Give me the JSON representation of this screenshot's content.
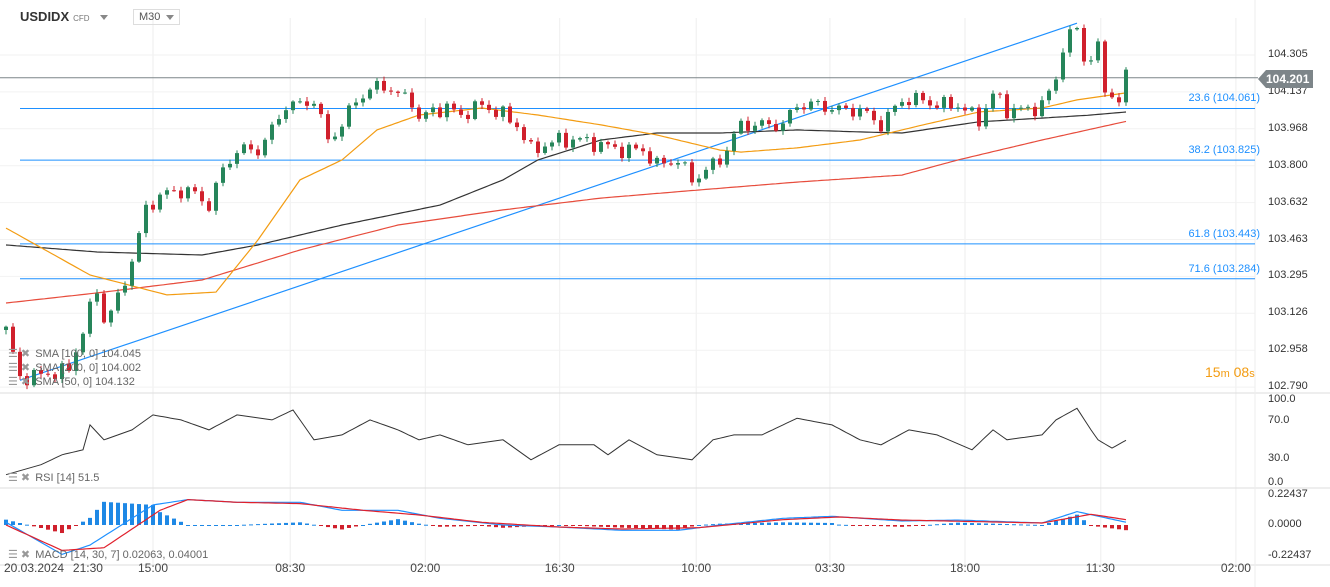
{
  "header": {
    "symbol": "USDIDX",
    "type": "CFD",
    "timeframe": "M30"
  },
  "price_label": "104.201",
  "timer": {
    "min": "15",
    "min_unit": "m",
    "sec": "08",
    "sec_unit": "s"
  },
  "price_axis": [
    "104.305",
    "104.137",
    "103.968",
    "103.800",
    "103.632",
    "103.463",
    "103.295",
    "103.126",
    "102.958",
    "102.790"
  ],
  "rsi_axis": [
    "100.0",
    "70.0",
    "30.0",
    "0.0"
  ],
  "macd_axis": [
    "0.22437",
    "0.0000",
    "-0.22437"
  ],
  "fib": [
    {
      "label": "23.6 (104.061)",
      "price": 104.061
    },
    {
      "label": "38.2 (103.825)",
      "price": 103.825
    },
    {
      "label": "61.8 (103.443)",
      "price": 103.443
    },
    {
      "label": "71.6 (103.284)",
      "price": 103.284
    }
  ],
  "legend": {
    "sma100": "SMA [100, 0] 104.045",
    "sma200": "SMA [200, 0] 104.002",
    "sma50": "SMA [50, 0] 104.132",
    "rsi": "RSI [14] 51.5",
    "macd": "MACD [14, 30, 7] 0.02063,  0.04001"
  },
  "time_axis": [
    {
      "t": "20.03.2024",
      "bar": 6
    },
    {
      "t": "21:30",
      "bar": 11.7
    },
    {
      "t": "15:00",
      "bar": 21
    },
    {
      "t": "08:30",
      "bar": 40.6
    },
    {
      "t": "02:00",
      "bar": 59.9
    },
    {
      "t": "16:30",
      "bar": 79.1
    },
    {
      "t": "10:00",
      "bar": 98.6
    },
    {
      "t": "03:30",
      "bar": 117.7
    },
    {
      "t": "18:00",
      "bar": 137
    },
    {
      "t": "11:30",
      "bar": 156.4
    },
    {
      "t": "02:00",
      "bar": 175.7
    }
  ],
  "colors": {
    "up": "#26855a",
    "down": "#d0202c",
    "sma50": "#f39c12",
    "sma100": "#333333",
    "sma200": "#e74c3c",
    "fib": "#1e90ff",
    "macd": "#1e90ff",
    "signal": "#e0202c"
  },
  "chart_data": {
    "type": "candlestick",
    "bars": 161,
    "ylim": [
      102.79,
      104.305
    ],
    "price_anchors": [
      [
        0,
        103.05
      ],
      [
        2,
        102.831
      ],
      [
        5,
        102.845
      ],
      [
        9,
        102.867
      ],
      [
        11,
        103.05
      ],
      [
        13,
        103.232
      ],
      [
        14,
        103.096
      ],
      [
        16,
        103.187
      ],
      [
        18,
        103.369
      ],
      [
        20,
        103.598
      ],
      [
        22,
        103.666
      ],
      [
        26,
        103.689
      ],
      [
        29,
        103.62
      ],
      [
        31,
        103.78
      ],
      [
        33,
        103.871
      ],
      [
        36,
        103.871
      ],
      [
        38,
        103.963
      ],
      [
        40,
        104.077
      ],
      [
        42,
        104.077
      ],
      [
        44,
        104.1
      ],
      [
        46,
        103.917
      ],
      [
        48,
        103.986
      ],
      [
        50,
        104.1
      ],
      [
        52,
        104.145
      ],
      [
        54,
        104.168
      ],
      [
        56,
        104.122
      ],
      [
        58,
        104.1
      ],
      [
        59,
        104.008
      ],
      [
        61,
        104.054
      ],
      [
        63,
        104.063
      ],
      [
        65,
        104.031
      ],
      [
        68,
        104.077
      ],
      [
        71,
        104.031
      ],
      [
        73,
        103.986
      ],
      [
        75,
        103.871
      ],
      [
        77,
        103.894
      ],
      [
        79,
        103.917
      ],
      [
        82,
        103.917
      ],
      [
        85,
        103.894
      ],
      [
        88,
        103.871
      ],
      [
        91,
        103.871
      ],
      [
        93,
        103.803
      ],
      [
        96,
        103.826
      ],
      [
        98,
        103.735
      ],
      [
        99,
        103.757
      ],
      [
        102,
        103.826
      ],
      [
        105,
        103.986
      ],
      [
        108,
        103.986
      ],
      [
        111,
        103.986
      ],
      [
        113,
        104.077
      ],
      [
        116,
        104.077
      ],
      [
        119,
        104.054
      ],
      [
        122,
        104.054
      ],
      [
        125,
        103.986
      ],
      [
        128,
        104.1
      ],
      [
        131,
        104.1
      ],
      [
        133,
        104.077
      ],
      [
        136,
        104.077
      ],
      [
        139,
        104.008
      ],
      [
        141,
        104.122
      ],
      [
        142,
        104.1
      ],
      [
        143,
        104.054
      ],
      [
        146,
        104.054
      ],
      [
        148,
        104.077
      ],
      [
        150,
        104.191
      ],
      [
        151,
        104.351
      ],
      [
        153,
        104.428
      ],
      [
        154,
        104.282
      ],
      [
        156,
        104.328
      ],
      [
        157,
        104.145
      ],
      [
        159,
        104.1
      ],
      [
        160,
        104.2
      ]
    ],
    "sma50": [
      [
        0,
        103.515
      ],
      [
        12,
        103.301
      ],
      [
        23,
        103.21
      ],
      [
        30,
        103.223
      ],
      [
        36,
        103.461
      ],
      [
        42,
        103.735
      ],
      [
        48,
        103.826
      ],
      [
        53,
        103.963
      ],
      [
        59,
        104.031
      ],
      [
        68,
        104.063
      ],
      [
        76,
        104.031
      ],
      [
        85,
        103.986
      ],
      [
        93,
        103.94
      ],
      [
        102,
        103.871
      ],
      [
        105,
        103.862
      ],
      [
        113,
        103.881
      ],
      [
        122,
        103.917
      ],
      [
        131,
        103.986
      ],
      [
        139,
        104.045
      ],
      [
        148,
        104.063
      ],
      [
        153,
        104.1
      ],
      [
        160,
        104.132
      ]
    ],
    "sma100": [
      [
        0,
        103.438
      ],
      [
        13,
        103.406
      ],
      [
        28,
        103.392
      ],
      [
        36,
        103.438
      ],
      [
        48,
        103.529
      ],
      [
        62,
        103.62
      ],
      [
        71,
        103.735
      ],
      [
        76,
        103.826
      ],
      [
        85,
        103.917
      ],
      [
        93,
        103.949
      ],
      [
        102,
        103.949
      ],
      [
        113,
        103.963
      ],
      [
        122,
        103.954
      ],
      [
        128,
        103.949
      ],
      [
        139,
        104.0
      ],
      [
        148,
        104.017
      ],
      [
        155,
        104.031
      ],
      [
        160,
        104.045
      ]
    ],
    "sma200": [
      [
        0,
        103.173
      ],
      [
        13,
        103.219
      ],
      [
        28,
        103.278
      ],
      [
        42,
        103.415
      ],
      [
        56,
        103.529
      ],
      [
        71,
        103.598
      ],
      [
        85,
        103.652
      ],
      [
        99,
        103.689
      ],
      [
        113,
        103.725
      ],
      [
        128,
        103.757
      ],
      [
        136,
        103.826
      ],
      [
        148,
        103.917
      ],
      [
        160,
        104.002
      ]
    ],
    "trendline": [
      [
        2,
        102.82
      ],
      [
        153,
        104.45
      ]
    ],
    "rsi": [
      [
        0,
        10
      ],
      [
        5,
        22
      ],
      [
        8,
        34
      ],
      [
        11,
        40
      ],
      [
        12,
        70
      ],
      [
        14,
        52
      ],
      [
        18,
        64
      ],
      [
        21,
        82
      ],
      [
        25,
        76
      ],
      [
        29,
        64
      ],
      [
        33,
        82
      ],
      [
        38,
        76
      ],
      [
        41,
        88
      ],
      [
        44,
        52
      ],
      [
        48,
        58
      ],
      [
        52,
        76
      ],
      [
        56,
        64
      ],
      [
        59,
        52
      ],
      [
        62,
        58
      ],
      [
        66,
        46
      ],
      [
        71,
        52
      ],
      [
        75,
        28
      ],
      [
        79,
        46
      ],
      [
        84,
        46
      ],
      [
        86,
        34
      ],
      [
        89,
        52
      ],
      [
        93,
        34
      ],
      [
        98,
        28
      ],
      [
        101,
        52
      ],
      [
        104,
        58
      ],
      [
        108,
        58
      ],
      [
        113,
        78
      ],
      [
        118,
        70
      ],
      [
        122,
        52
      ],
      [
        125,
        46
      ],
      [
        129,
        64
      ],
      [
        133,
        58
      ],
      [
        138,
        40
      ],
      [
        141,
        64
      ],
      [
        143,
        52
      ],
      [
        148,
        58
      ],
      [
        150,
        76
      ],
      [
        153,
        90
      ],
      [
        155,
        64
      ],
      [
        156,
        52
      ],
      [
        158,
        42
      ],
      [
        160,
        51.5
      ]
    ],
    "macd": [
      [
        0,
        0.02
      ],
      [
        8,
        -0.22
      ],
      [
        12,
        -0.15
      ],
      [
        21,
        0.15
      ],
      [
        26,
        0.19
      ],
      [
        33,
        0.17
      ],
      [
        42,
        0.17
      ],
      [
        48,
        0.11
      ],
      [
        56,
        0.11
      ],
      [
        62,
        0.05
      ],
      [
        71,
        0
      ],
      [
        79,
        -0.015
      ],
      [
        88,
        -0.04
      ],
      [
        96,
        -0.04
      ],
      [
        102,
        0
      ],
      [
        111,
        0.05
      ],
      [
        118,
        0.065
      ],
      [
        128,
        0.03
      ],
      [
        136,
        0.037
      ],
      [
        148,
        0.015
      ],
      [
        153,
        0.1
      ],
      [
        160,
        0.02063
      ]
    ],
    "signal": [
      [
        0,
        0
      ],
      [
        8,
        -0.19
      ],
      [
        14,
        -0.17
      ],
      [
        22,
        0.11
      ],
      [
        26,
        0.19
      ],
      [
        33,
        0.17
      ],
      [
        42,
        0.16
      ],
      [
        51,
        0.11
      ],
      [
        59,
        0.075
      ],
      [
        68,
        0.02
      ],
      [
        79,
        -0.015
      ],
      [
        88,
        -0.03
      ],
      [
        99,
        -0.02
      ],
      [
        111,
        0.04
      ],
      [
        119,
        0.06
      ],
      [
        128,
        0.037
      ],
      [
        148,
        0.015
      ],
      [
        155,
        0.08
      ],
      [
        160,
        0.04001
      ]
    ]
  }
}
